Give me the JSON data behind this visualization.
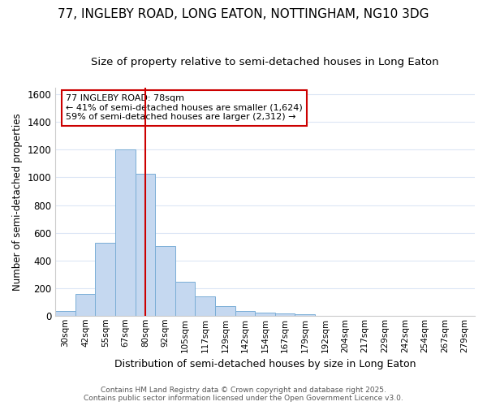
{
  "title": "77, INGLEBY ROAD, LONG EATON, NOTTINGHAM, NG10 3DG",
  "subtitle": "Size of property relative to semi-detached houses in Long Eaton",
  "xlabel": "Distribution of semi-detached houses by size in Long Eaton",
  "ylabel": "Number of semi-detached properties",
  "categories": [
    "30sqm",
    "42sqm",
    "55sqm",
    "67sqm",
    "80sqm",
    "92sqm",
    "105sqm",
    "117sqm",
    "129sqm",
    "142sqm",
    "154sqm",
    "167sqm",
    "179sqm",
    "192sqm",
    "204sqm",
    "217sqm",
    "229sqm",
    "242sqm",
    "254sqm",
    "267sqm",
    "279sqm"
  ],
  "values": [
    35,
    160,
    525,
    1200,
    1025,
    505,
    245,
    140,
    70,
    35,
    20,
    15,
    8,
    0,
    0,
    0,
    0,
    0,
    0,
    0,
    0
  ],
  "bar_color": "#c5d8f0",
  "bar_edge_color": "#7aaed6",
  "vline_color": "#cc0000",
  "ylim": [
    0,
    1650
  ],
  "yticks": [
    0,
    200,
    400,
    600,
    800,
    1000,
    1200,
    1400,
    1600
  ],
  "annotation_title": "77 INGLEBY ROAD: 78sqm",
  "annotation_line1": "← 41% of semi-detached houses are smaller (1,624)",
  "annotation_line2": "59% of semi-detached houses are larger (2,312) →",
  "footer_line1": "Contains HM Land Registry data © Crown copyright and database right 2025.",
  "footer_line2": "Contains public sector information licensed under the Open Government Licence v3.0.",
  "bg_color": "#ffffff",
  "grid_color": "#dce6f5",
  "annotation_box_color": "#ffffff",
  "annotation_box_edge": "#cc0000",
  "title_fontsize": 11,
  "subtitle_fontsize": 9.5
}
